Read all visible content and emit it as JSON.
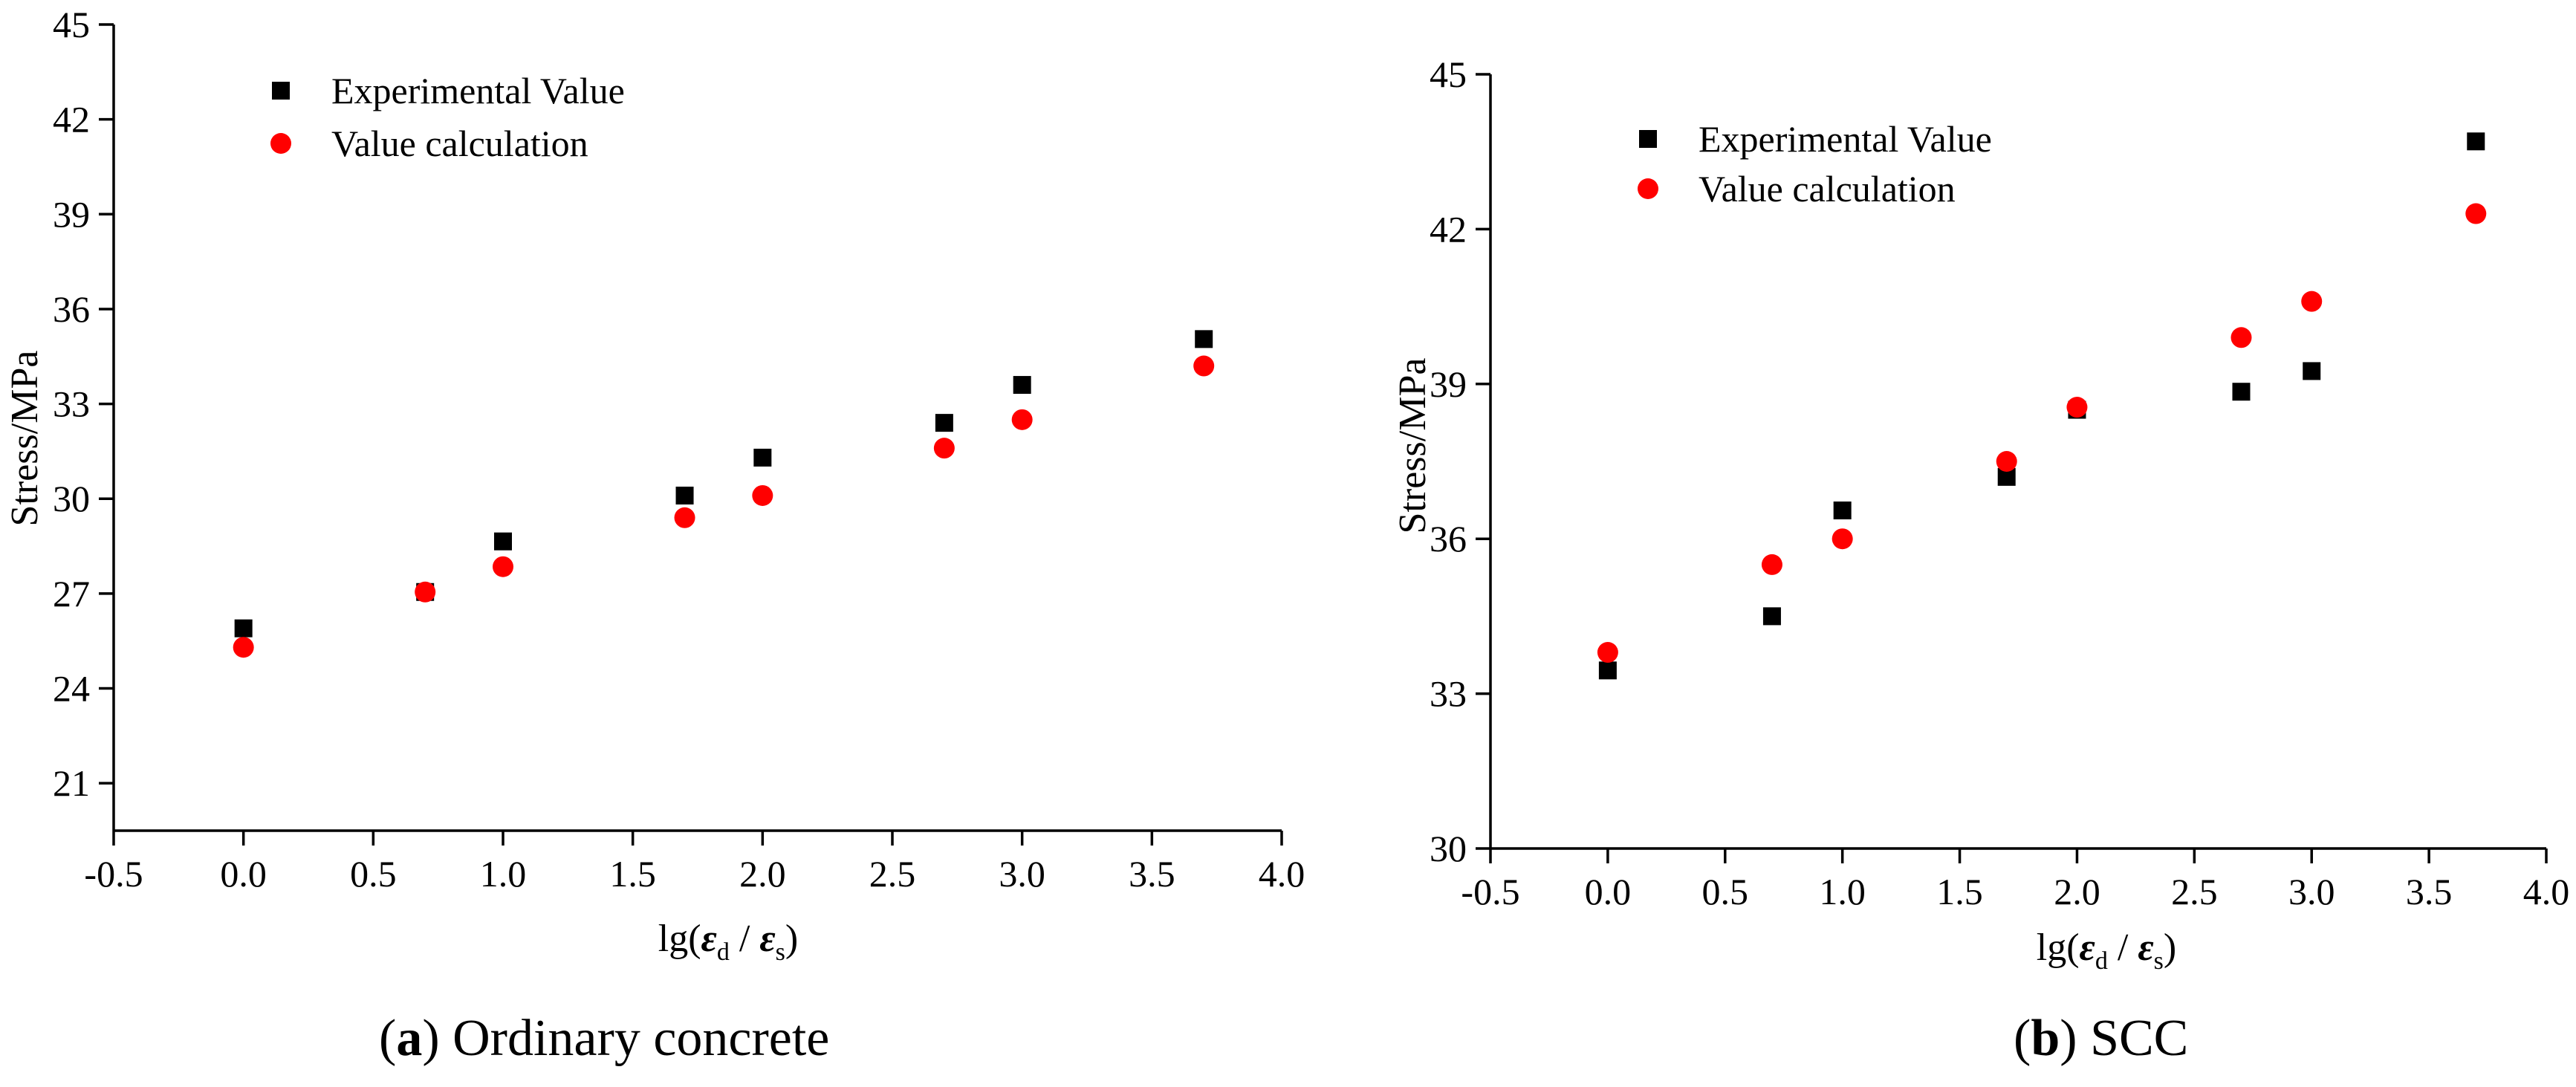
{
  "chart_data": [
    {
      "type": "scatter",
      "caption_letter": "a",
      "caption_text": "Ordinary concrete",
      "xlabel_prefix": "lg(",
      "xlabel_num": "ε",
      "xlabel_num_sub": "d",
      "xlabel_slash": "/",
      "xlabel_den": "ε",
      "xlabel_den_sub": "s",
      "xlabel_suffix": ")",
      "ylabel": "Stress/MPa",
      "xlim": [
        -0.5,
        4.0
      ],
      "ylim": [
        19.5,
        45
      ],
      "xticks": [
        -0.5,
        0.0,
        0.5,
        1.0,
        1.5,
        2.0,
        2.5,
        3.0,
        3.5,
        4.0
      ],
      "xtick_labels": [
        "-0.5",
        "0.0",
        "0.5",
        "1.0",
        "1.5",
        "2.0",
        "2.5",
        "3.0",
        "3.5",
        "4.0"
      ],
      "yticks": [
        21,
        24,
        27,
        30,
        33,
        36,
        39,
        42,
        45
      ],
      "ytick_labels": [
        "21",
        "24",
        "27",
        "30",
        "33",
        "36",
        "39",
        "42",
        "45"
      ],
      "legend": "top-left",
      "series": [
        {
          "name": "Experimental Value",
          "marker": "square",
          "color": "#000000",
          "x": [
            0.0,
            0.7,
            1.0,
            1.7,
            2.0,
            2.7,
            3.0,
            3.7
          ],
          "y": [
            25.9,
            27.05,
            28.65,
            30.1,
            31.3,
            32.4,
            33.6,
            35.05
          ]
        },
        {
          "name": "Value calculation",
          "marker": "circle",
          "color": "#ff0000",
          "x": [
            0.0,
            0.7,
            1.0,
            1.7,
            2.0,
            2.7,
            3.0,
            3.7
          ],
          "y": [
            25.3,
            27.05,
            27.85,
            29.4,
            30.1,
            31.6,
            32.5,
            34.2
          ]
        }
      ]
    },
    {
      "type": "scatter",
      "caption_letter": "b",
      "caption_text": "SCC",
      "xlabel_prefix": "lg(",
      "xlabel_num": "ε",
      "xlabel_num_sub": "d",
      "xlabel_slash": "/",
      "xlabel_den": "ε",
      "xlabel_den_sub": "s",
      "xlabel_suffix": ")",
      "ylabel": "Stress/MPa",
      "xlim": [
        -0.5,
        4.0
      ],
      "ylim": [
        30,
        45
      ],
      "xticks": [
        -0.5,
        0.0,
        0.5,
        1.0,
        1.5,
        2.0,
        2.5,
        3.0,
        3.5,
        4.0
      ],
      "xtick_labels": [
        "-0.5",
        "0.0",
        "0.5",
        "1.0",
        "1.5",
        "2.0",
        "2.5",
        "3.0",
        "3.5",
        "4.0"
      ],
      "yticks": [
        30,
        33,
        36,
        39,
        42,
        45
      ],
      "ytick_labels": [
        "30",
        "33",
        "36",
        "39",
        "42",
        "45"
      ],
      "legend": "top-left",
      "series": [
        {
          "name": "Experimental Value",
          "marker": "square",
          "color": "#000000",
          "x": [
            0.0,
            0.7,
            1.0,
            1.7,
            2.0,
            2.7,
            3.0,
            3.7
          ],
          "y": [
            33.45,
            34.5,
            36.55,
            37.2,
            38.5,
            38.85,
            39.25,
            43.7
          ]
        },
        {
          "name": "Value calculation",
          "marker": "circle",
          "color": "#ff0000",
          "x": [
            0.0,
            0.7,
            1.0,
            1.7,
            2.0,
            2.7,
            3.0,
            3.7
          ],
          "y": [
            33.8,
            35.5,
            36.0,
            37.5,
            38.55,
            39.9,
            40.6,
            42.3
          ]
        }
      ]
    }
  ]
}
